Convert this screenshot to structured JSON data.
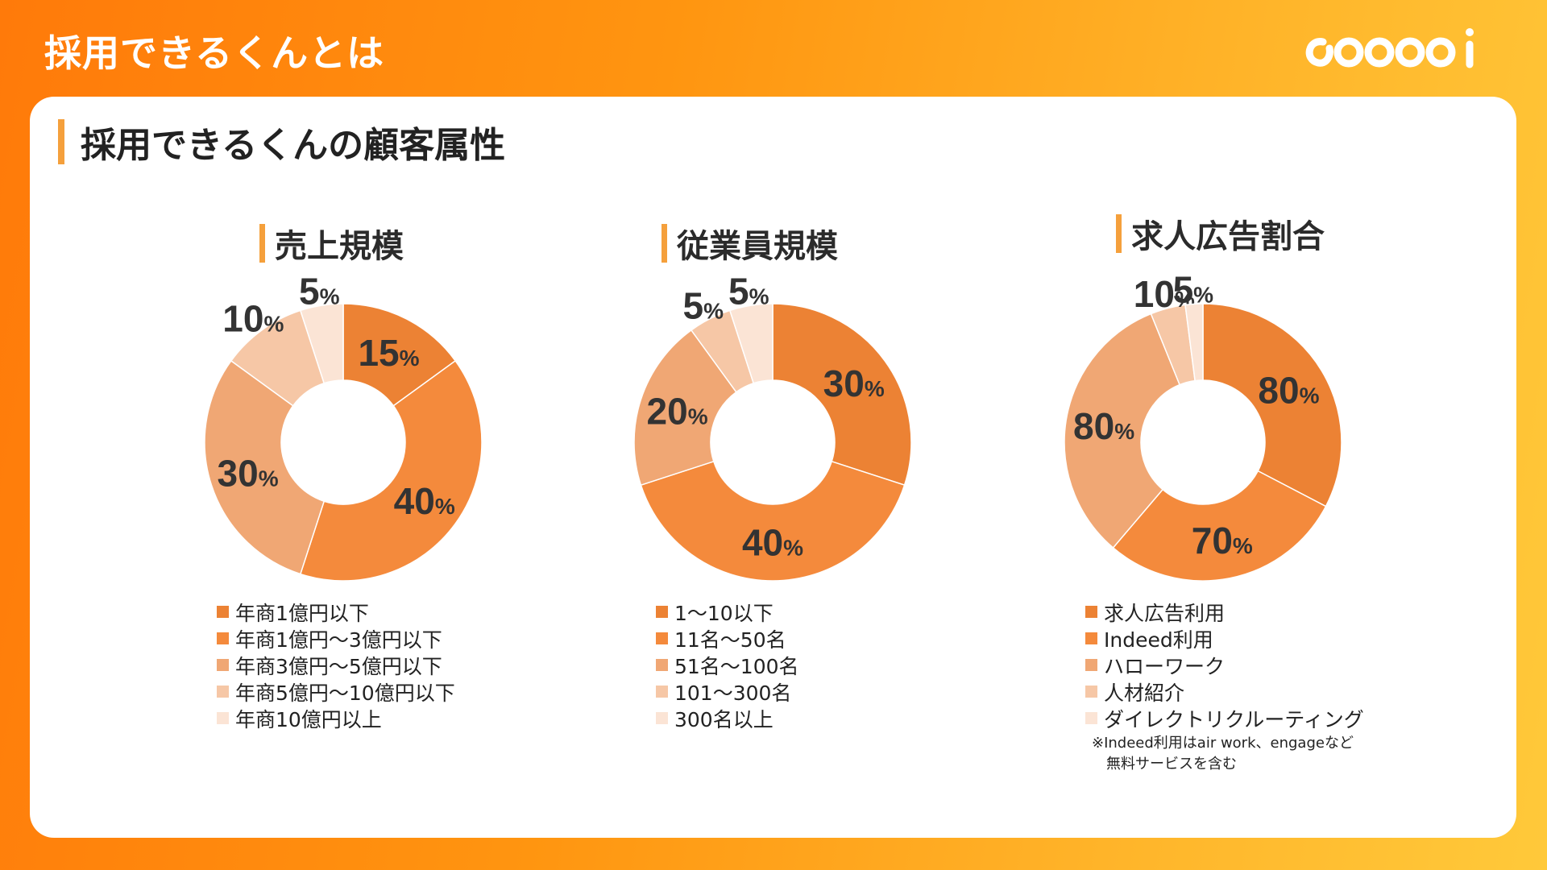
{
  "header": {
    "title": "採用できるくんとは"
  },
  "section": {
    "title": "採用できるくんの顧客属性"
  },
  "colors": {
    "accent_bar": "#f5a03c",
    "slices": [
      "#ec8234",
      "#f48a3c",
      "#f0a774",
      "#f6c7a6",
      "#fbe4d5"
    ]
  },
  "chart_data": [
    {
      "type": "pie",
      "title": "売上規模",
      "categories": [
        "年商1億円以下",
        "年商1億円～3億円以下",
        "年商3億円～5億円以下",
        "年商5億円～10億円以下",
        "年商10億円以上"
      ],
      "values": [
        15,
        40,
        30,
        10,
        5
      ],
      "unit": "%",
      "legend": "bottom"
    },
    {
      "type": "pie",
      "title": "従業員規模",
      "categories": [
        "1～10以下",
        "11名～50名",
        "51名～100名",
        "101～300名",
        "300名以上"
      ],
      "values": [
        30,
        40,
        20,
        5,
        5
      ],
      "unit": "%",
      "legend": "bottom"
    },
    {
      "type": "pie",
      "title": "求人広告割合",
      "categories": [
        "求人広告利用",
        "Indeed利用",
        "ハローワーク",
        "人材紹介",
        "ダイレクトリクルーティング"
      ],
      "values": [
        80,
        70,
        80,
        10,
        5
      ],
      "unit": "%",
      "legend": "bottom",
      "footnote": [
        "※Indeed利用はair work、engageなど",
        "無料サービスを含む"
      ]
    }
  ]
}
